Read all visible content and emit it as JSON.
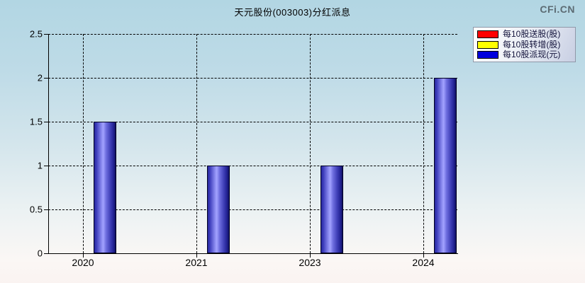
{
  "header": {
    "title": "天元股份(003003)分红派息",
    "watermark": "CFi.CN"
  },
  "chart_data": {
    "type": "bar",
    "title": "天元股份(003003)分红派息",
    "categories": [
      "2020",
      "2021",
      "2023",
      "2024"
    ],
    "series": [
      {
        "name": "每10股送股(股)",
        "color": "#ff0000",
        "values": [
          0,
          0,
          0,
          0
        ]
      },
      {
        "name": "每10股转增(股)",
        "color": "#ffff00",
        "values": [
          0,
          0,
          0,
          0
        ]
      },
      {
        "name": "每10股派现(元)",
        "color": "#0000dd",
        "values": [
          1.5,
          1.0,
          1.0,
          2.0
        ]
      }
    ],
    "xlabel": "",
    "ylabel": "",
    "ylim": [
      0,
      2.5
    ],
    "ytick_step": 0.5,
    "ytick_labels": [
      "0",
      "0.5",
      "1",
      "1.5",
      "2",
      "2.5"
    ],
    "grid": true,
    "legend_position": "top-right"
  }
}
